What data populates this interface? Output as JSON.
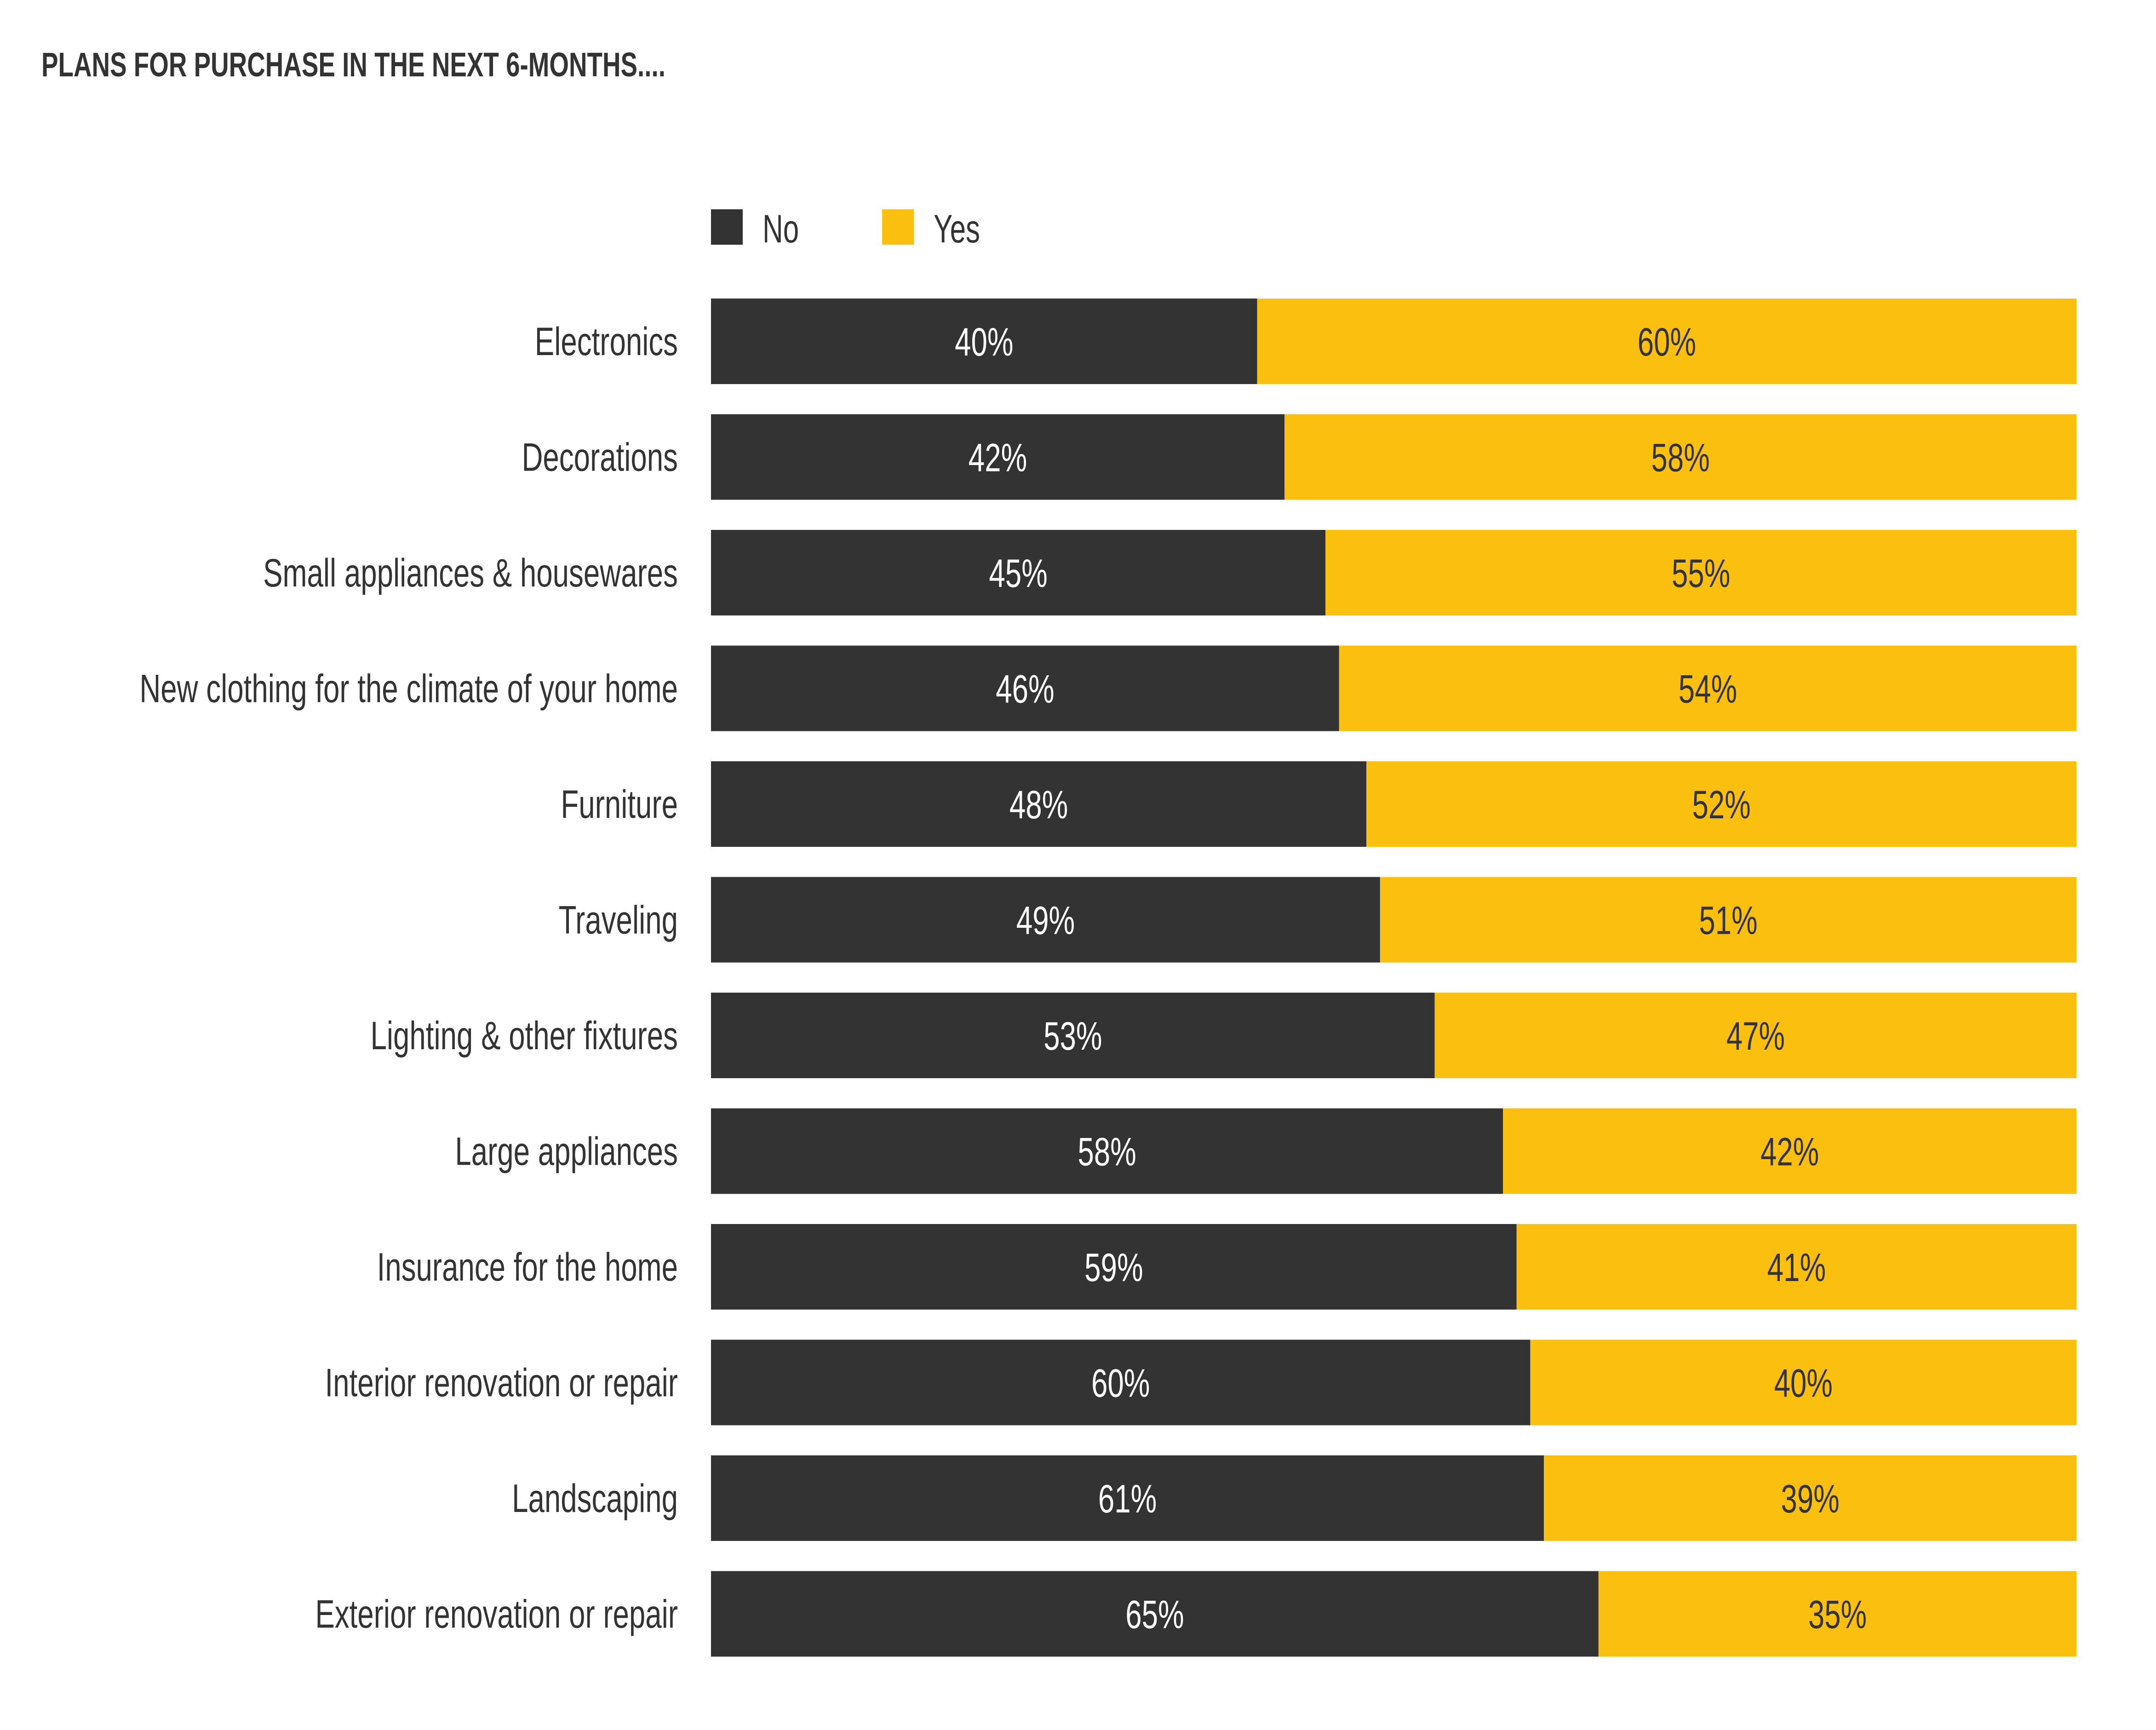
{
  "title": "PLANS FOR PURCHASE IN THE NEXT 6-MONTHS....",
  "legend": [
    {
      "label": "No",
      "color": "#333333"
    },
    {
      "label": "Yes",
      "color": "#FBBF10"
    }
  ],
  "chart_data": {
    "type": "bar",
    "orientation": "horizontal",
    "stacked": true,
    "normalized_percent": true,
    "title": "PLANS FOR PURCHASE IN THE NEXT 6-MONTHS....",
    "xlabel": "",
    "ylabel": "",
    "xlim": [
      0,
      100
    ],
    "grid": false,
    "legend_position": "top",
    "categories": [
      "Electronics",
      "Decorations",
      "Small appliances & housewares",
      "New clothing for the climate of your home",
      "Furniture",
      "Traveling",
      "Lighting & other fixtures",
      "Large appliances",
      "Insurance for the home",
      "Interior renovation or repair",
      "Landscaping",
      "Exterior renovation or repair"
    ],
    "series": [
      {
        "name": "No",
        "color": "#333333",
        "label_color": "#FFFFFF",
        "values": [
          40,
          42,
          45,
          46,
          48,
          49,
          53,
          58,
          59,
          60,
          61,
          65
        ]
      },
      {
        "name": "Yes",
        "color": "#FBBF10",
        "label_color": "#333333",
        "values": [
          60,
          58,
          55,
          54,
          52,
          51,
          47,
          42,
          41,
          40,
          39,
          35
        ]
      }
    ],
    "value_suffix": "%"
  }
}
